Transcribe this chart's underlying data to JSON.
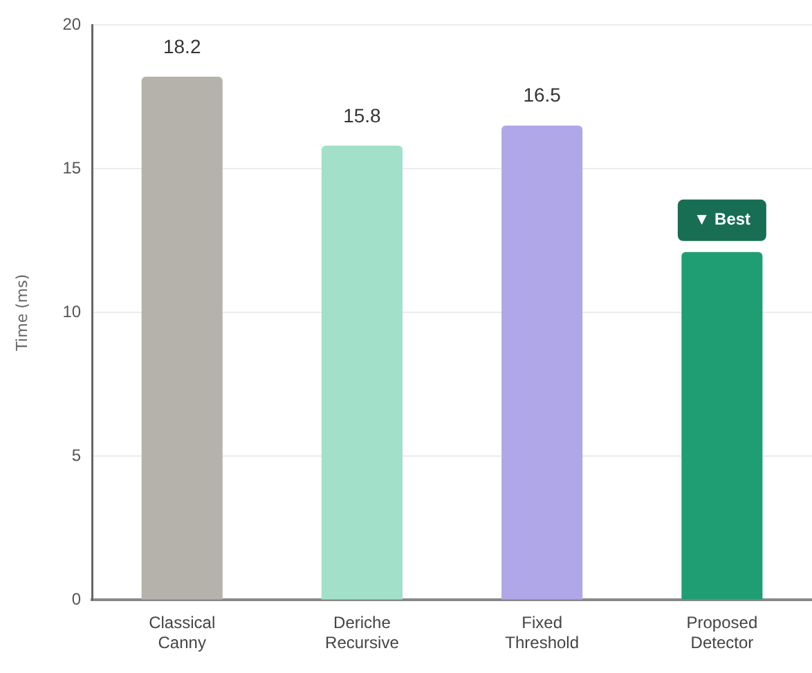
{
  "chart_data": {
    "type": "bar",
    "ylabel": "Time (ms)",
    "categories": [
      "Classical Canny",
      "Deriche Recursive",
      "Fixed Threshold",
      "Proposed Detector"
    ],
    "values": [
      18.2,
      15.8,
      16.5,
      12.1
    ],
    "colors": [
      "#b4b2ab",
      "#a2e0c9",
      "#afa7e8",
      "#1f9e74"
    ],
    "value_labels": [
      "18.2",
      "15.8",
      "16.5",
      null
    ],
    "annotations": [
      {
        "text": "▼ Best",
        "x": "Proposed Detector",
        "y": 12.1
      }
    ],
    "ylim": [
      0,
      20
    ],
    "yticks": [
      0,
      5,
      10,
      15,
      20
    ],
    "grid": "y",
    "legend": false
  }
}
